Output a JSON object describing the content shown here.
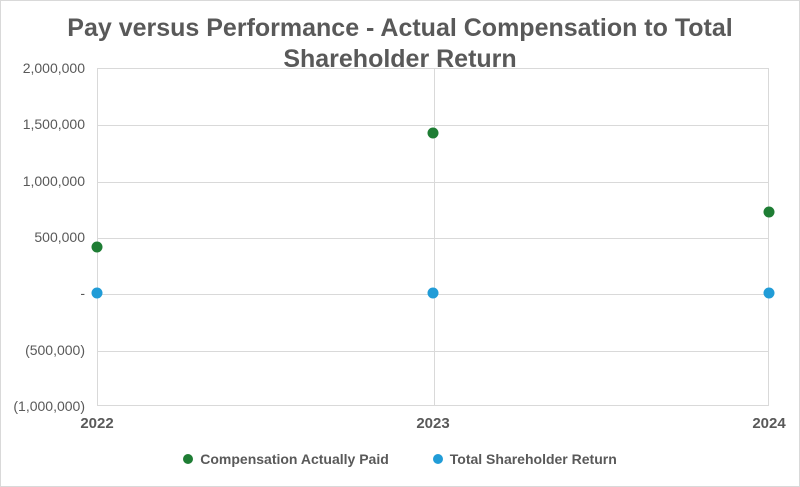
{
  "chart_data": {
    "type": "scatter",
    "title": "Pay versus Performance - Actual Compensation to Total Shareholder Return",
    "title_lines": [
      "Pay versus Performance - Actual Compensation to Total",
      "Shareholder Return"
    ],
    "categories": [
      "2022",
      "2023",
      "2024"
    ],
    "series": [
      {
        "name": "Compensation Actually Paid",
        "color": "#1e7d34",
        "values": [
          410000,
          1420000,
          720000
        ]
      },
      {
        "name": "Total Shareholder Return",
        "color": "#219cd7",
        "values": [
          0,
          0,
          0
        ]
      }
    ],
    "ylim": [
      -1000000,
      2000000
    ],
    "y_tick_interval": 500000,
    "y_ticks": [
      {
        "value": 2000000,
        "label": "2,000,000"
      },
      {
        "value": 1500000,
        "label": "1,500,000"
      },
      {
        "value": 1000000,
        "label": "1,000,000"
      },
      {
        "value": 500000,
        "label": "500,000"
      },
      {
        "value": 0,
        "label": "-"
      },
      {
        "value": -500000,
        "label": "(500,000)"
      },
      {
        "value": -1000000,
        "label": "(1,000,000)"
      }
    ],
    "grid": true,
    "legend_position": "bottom"
  },
  "styles": {
    "title_color": "#595959",
    "axis_label_color": "#595959",
    "gridline_color": "#d9d9d9",
    "border_color": "#d9d9d9",
    "background_color": "#ffffff"
  }
}
